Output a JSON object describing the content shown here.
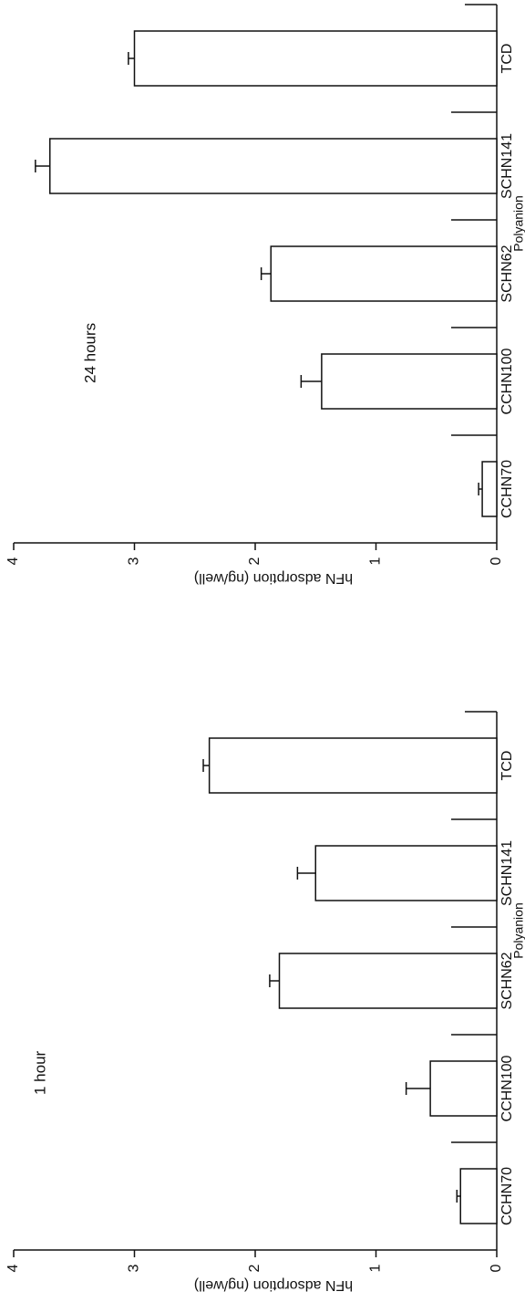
{
  "chart_data": [
    {
      "type": "bar",
      "title": "24 hours",
      "xlabel": "Polyanion",
      "ylabel": "hFN adsorption (ng/well)",
      "categories": [
        "CCHN70",
        "CCHN100",
        "SCHN62",
        "SCHN141",
        "TCD"
      ],
      "values": [
        0.12,
        1.45,
        1.87,
        3.7,
        3.0
      ],
      "errors": [
        0.03,
        0.17,
        0.08,
        0.12,
        0.05
      ],
      "color": "#ffffff",
      "ylim": [
        0,
        4
      ],
      "yticks": [
        0,
        1,
        2,
        3,
        4
      ]
    },
    {
      "type": "bar",
      "title": "1 hour",
      "xlabel": "Polyanion",
      "ylabel": "hFN adsorption (ng/well)",
      "categories": [
        "CCHN70",
        "CCHN100",
        "SCHN62",
        "SCHN141",
        "TCD"
      ],
      "values": [
        0.3,
        0.55,
        1.8,
        1.5,
        2.38
      ],
      "errors": [
        0.03,
        0.2,
        0.08,
        0.15,
        0.05
      ],
      "color": "#ffffff",
      "ylim": [
        0,
        4
      ],
      "yticks": [
        0,
        1,
        2,
        3,
        4
      ]
    }
  ]
}
